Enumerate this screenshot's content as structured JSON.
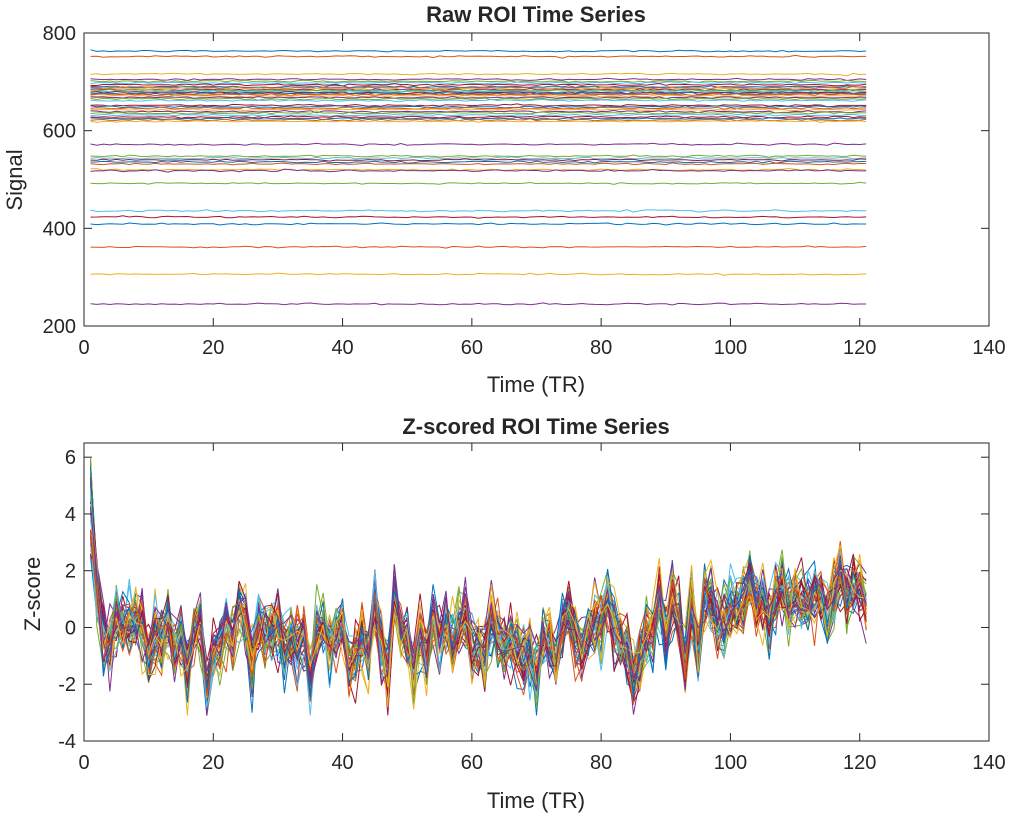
{
  "chart_data": [
    {
      "type": "line",
      "title": "Raw ROI Time Series",
      "xlabel": "Time (TR)",
      "ylabel": "Signal",
      "xlim": [
        0,
        140
      ],
      "ylim": [
        200,
        800
      ],
      "xticks": [
        "0",
        "20",
        "40",
        "60",
        "80",
        "100",
        "120",
        "140"
      ],
      "yticks": [
        "200",
        "400",
        "600",
        "800"
      ],
      "x_range": [
        1,
        121
      ],
      "grid": false,
      "series_levels": [
        763,
        752,
        716,
        705,
        701,
        698,
        694,
        690,
        688,
        686,
        684,
        682,
        680,
        678,
        676,
        674,
        671,
        668,
        665,
        662,
        652,
        649,
        646,
        643,
        639,
        636,
        632,
        628,
        625,
        622,
        619,
        572,
        548,
        544,
        540,
        536,
        532,
        520,
        518,
        492,
        436,
        423,
        409,
        362,
        306,
        245
      ]
    },
    {
      "type": "line",
      "title": "Z-scored ROI Time Series",
      "xlabel": "Time (TR)",
      "ylabel": "Z-score",
      "xlim": [
        0,
        140
      ],
      "ylim": [
        -4,
        6.5
      ],
      "xticks": [
        "0",
        "20",
        "40",
        "60",
        "80",
        "100",
        "120",
        "140"
      ],
      "yticks": [
        "-4",
        "-2",
        "0",
        "2",
        "4",
        "6"
      ],
      "x_range": [
        1,
        121
      ],
      "grid": false,
      "series_count": 46
    }
  ],
  "colors": [
    "#0072BD",
    "#D95319",
    "#EDB120",
    "#7E2F8E",
    "#77AC30",
    "#4DBEEE",
    "#A2142F"
  ]
}
